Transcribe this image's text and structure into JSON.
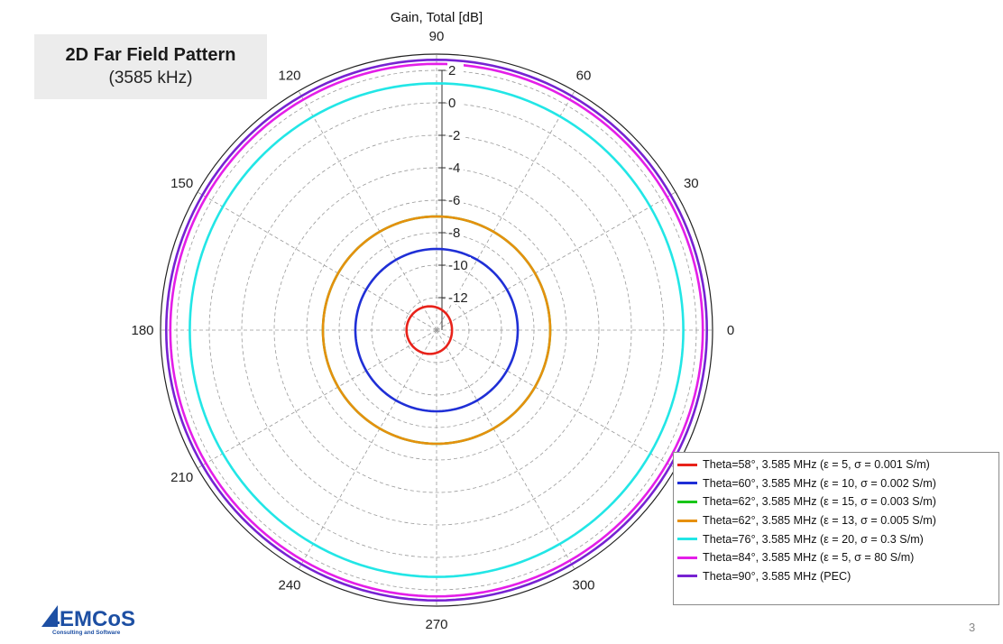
{
  "slide": {
    "heading": "2D Far Field Pattern",
    "subheading": "(3585 kHz)",
    "page_number": "3",
    "logo": {
      "text": "EMCoS",
      "tagline": "Consulting and Software",
      "color": "#1d4fa3"
    }
  },
  "chart_data": {
    "type": "polar",
    "title": "Gain, Total  [dB]",
    "radial_ticks": [
      2,
      0,
      -2,
      -4,
      -6,
      -8,
      -10,
      -12
    ],
    "radial_range": [
      -14,
      3
    ],
    "angle_ticks": [
      0,
      30,
      60,
      90,
      120,
      150,
      180,
      210,
      240,
      270,
      300,
      330
    ],
    "angle_labels": [
      "0",
      "30",
      "60",
      "90",
      "120",
      "150",
      "180",
      "210",
      "240",
      "270",
      "300",
      ""
    ],
    "grid": true,
    "legend_position": "bottom-right",
    "series": [
      {
        "name": "Theta=58°, 3.585 MHz (ε = 5, σ = 0.001 S/m)",
        "color": "#e8221a",
        "shape": "cardioid",
        "gain_mean": -12.6,
        "gain_variation": 0.45
      },
      {
        "name": "Theta=60°, 3.585 MHz (ε = 10, σ = 0.002 S/m)",
        "color": "#1f2fd6",
        "shape": "circle",
        "gain": -9.0
      },
      {
        "name": "Theta=62°, 3.585 MHz (ε = 15, σ = 0.003 S/m)",
        "color": "#18c618",
        "shape": "circle",
        "gain": -7.0
      },
      {
        "name": "Theta=62°, 3.585 MHz (ε = 13, σ = 0.005 S/m)",
        "color": "#e6900e",
        "shape": "circle",
        "gain": -7.0
      },
      {
        "name": "Theta=76°, 3.585 MHz (ε = 20, σ = 0.3 S/m)",
        "color": "#22e6e6",
        "shape": "circle",
        "gain": 1.2
      },
      {
        "name": "Theta=84°, 3.585 MHz (ε = 5, σ = 80 S/m)",
        "color": "#e41ee8",
        "shape": "circle",
        "gain": 2.4
      },
      {
        "name": "Theta=90°, 3.585 MHz (PEC)",
        "color": "#7722d2",
        "shape": "circle",
        "gain": 2.65
      }
    ]
  }
}
